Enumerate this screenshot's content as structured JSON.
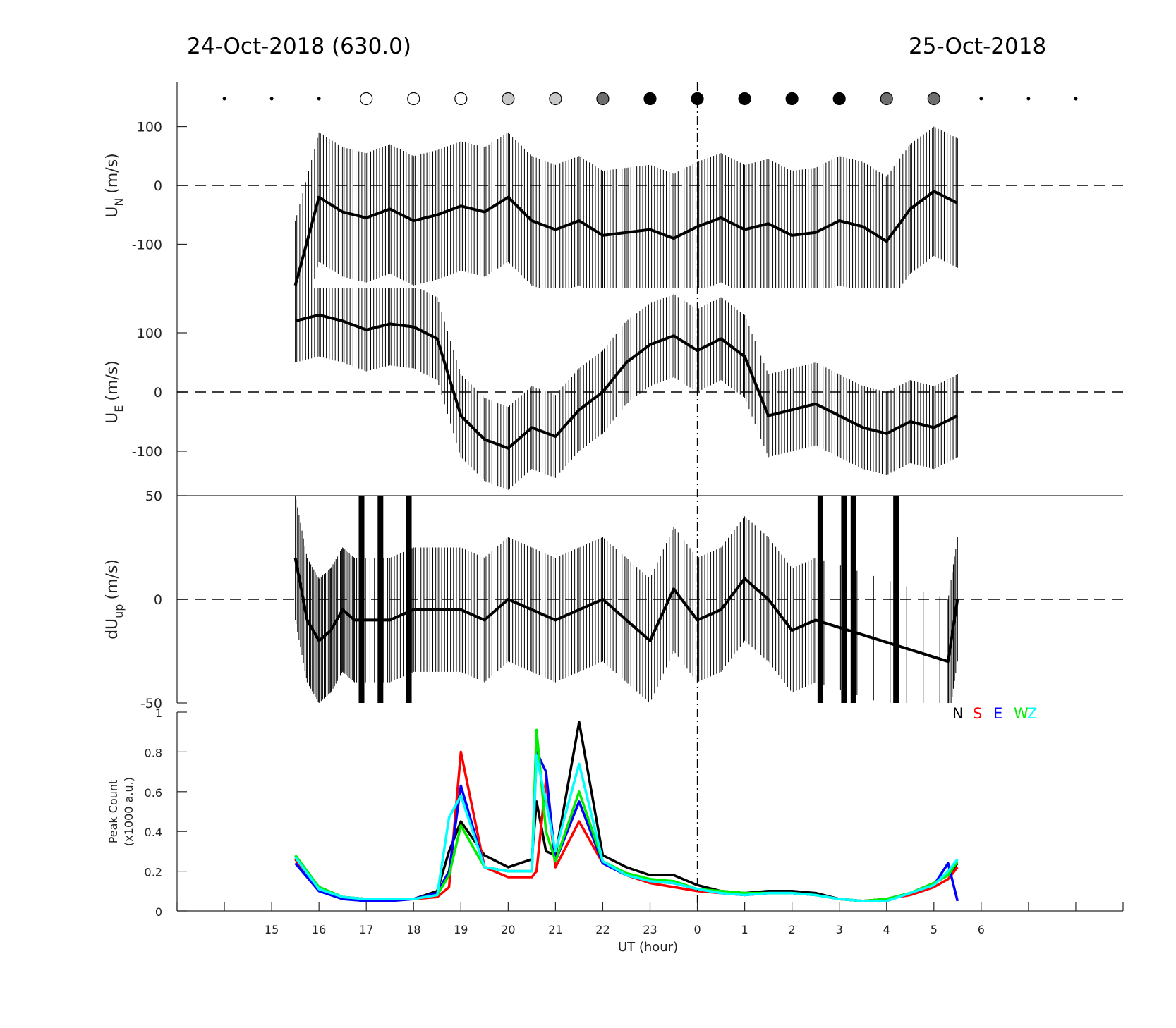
{
  "header": {
    "left_title": "24-Oct-2018 (630.0)",
    "right_title": "25-Oct-2018"
  },
  "moon_phase": {
    "hours": [
      -10,
      -9,
      -8,
      -7,
      -6,
      -5,
      -4,
      -3,
      -2,
      -1,
      0,
      1,
      2,
      3,
      4,
      5,
      6,
      7,
      8
    ],
    "shade": [
      "dot",
      "dot",
      "dot",
      "white",
      "white",
      "white",
      "lightgray",
      "lightgray",
      "darkgray",
      "black",
      "black",
      "black",
      "black",
      "black",
      "darkgray",
      "darkgray",
      "dot",
      "dot",
      "dot"
    ],
    "colors": {
      "white": "#ffffff",
      "lightgray": "#c8c8c8",
      "darkgray": "#6e6e6e",
      "black": "#000000"
    }
  },
  "chart_data": [
    {
      "type": "line",
      "id": "un",
      "ylabel_main": "U",
      "ylabel_sub": "N",
      "ylabel_unit": "(m/s)",
      "ylim": [
        -175,
        175
      ],
      "yticks": [
        -100,
        0,
        100
      ],
      "ytick_labels": [
        "-100",
        "0",
        "100"
      ],
      "zero_line": "dashed",
      "x": [
        -8.5,
        -8,
        -7.5,
        -7,
        -6.5,
        -6,
        -5.5,
        -5,
        -4.5,
        -4,
        -3.5,
        -3,
        -2.5,
        -2,
        -1.5,
        -1,
        -0.5,
        0,
        0.5,
        1,
        1.5,
        2,
        2.5,
        3,
        3.5,
        4,
        4.5,
        5,
        5.5
      ],
      "y": [
        -170,
        -20,
        -45,
        -55,
        -40,
        -60,
        -50,
        -35,
        -45,
        -20,
        -60,
        -75,
        -60,
        -85,
        -80,
        -75,
        -90,
        -70,
        -55,
        -75,
        -65,
        -85,
        -80,
        -60,
        -70,
        -95,
        -40,
        -10,
        -30
      ],
      "errorbar_half_width": 110
    },
    {
      "type": "line",
      "id": "ue",
      "ylabel_main": "U",
      "ylabel_sub": "E",
      "ylabel_unit": "(m/s)",
      "ylim": [
        -175,
        175
      ],
      "yticks": [
        -100,
        0,
        100
      ],
      "ytick_labels": [
        "-100",
        "0",
        "100"
      ],
      "zero_line": "dashed",
      "x": [
        -8.5,
        -8,
        -7.5,
        -7,
        -6.5,
        -6,
        -5.5,
        -5,
        -4.5,
        -4,
        -3.5,
        -3,
        -2.5,
        -2,
        -1.5,
        -1,
        -0.5,
        0,
        0.5,
        1,
        1.5,
        2,
        2.5,
        3,
        3.5,
        4,
        4.5,
        5,
        5.5
      ],
      "y": [
        120,
        130,
        120,
        105,
        115,
        110,
        90,
        -40,
        -80,
        -95,
        -60,
        -75,
        -30,
        0,
        50,
        80,
        95,
        70,
        90,
        60,
        -40,
        -30,
        -20,
        -40,
        -60,
        -70,
        -50,
        -60,
        -40
      ],
      "errorbar_half_width": 70
    },
    {
      "type": "line",
      "id": "dup",
      "ylabel_main": "dU",
      "ylabel_sub": "up",
      "ylabel_unit": "(m/s)",
      "ylim": [
        -50,
        50
      ],
      "yticks": [
        -50,
        0,
        50
      ],
      "ytick_labels": [
        "-50",
        "0",
        "50"
      ],
      "zero_line": "dashed",
      "x": [
        -8.5,
        -8.25,
        -8,
        -7.75,
        -7.5,
        -7.25,
        -6.5,
        -6,
        -5.5,
        -5,
        -4.5,
        -4,
        -3.5,
        -3,
        -2.5,
        -2,
        -1.5,
        -1,
        -0.5,
        0,
        0.5,
        1,
        1.5,
        2,
        2.5,
        5.3,
        5.5
      ],
      "y": [
        20,
        -10,
        -20,
        -15,
        -5,
        -10,
        -10,
        -5,
        -5,
        -5,
        -10,
        0,
        -5,
        -10,
        -5,
        0,
        -10,
        -20,
        5,
        -10,
        -5,
        10,
        0,
        -15,
        -10,
        -30,
        0
      ],
      "errorbar_half_width": 30,
      "saturated_bars_hours": [
        -7.1,
        -6.7,
        -6.1,
        2.6,
        3.1,
        3.3,
        4.2
      ]
    },
    {
      "type": "line",
      "id": "peak",
      "ylabel_line1": "Peak Count",
      "ylabel_line2": "(x1000 a.u.)",
      "ylim": [
        0,
        1
      ],
      "yticks": [
        0,
        0.2,
        0.4,
        0.6,
        0.8,
        1
      ],
      "ytick_labels": [
        "0",
        "0.2",
        "0.4",
        "0.6",
        "0.8",
        "1"
      ],
      "legend": [
        {
          "label": "N",
          "color": "#000000"
        },
        {
          "label": "S",
          "color": "#ff0000"
        },
        {
          "label": "E",
          "color": "#0000ff"
        },
        {
          "label": "W",
          "color": "#00ee00"
        },
        {
          "label": "Z",
          "color": "#00ffff"
        }
      ],
      "x": [
        -8.5,
        -8,
        -7.5,
        -7,
        -6.5,
        -6,
        -5.5,
        -5.25,
        -5,
        -4.5,
        -4,
        -3.5,
        -3.4,
        -3.2,
        -3,
        -2.5,
        -2,
        -1.5,
        -1,
        -0.5,
        0,
        0.5,
        1,
        1.5,
        2,
        2.5,
        3,
        3.5,
        4,
        4.5,
        5,
        5.3,
        5.5
      ],
      "series": [
        {
          "name": "N",
          "color": "#000000",
          "y": [
            0.26,
            0.12,
            0.07,
            0.06,
            0.06,
            0.06,
            0.1,
            0.3,
            0.45,
            0.28,
            0.22,
            0.26,
            0.55,
            0.3,
            0.28,
            0.95,
            0.28,
            0.22,
            0.18,
            0.18,
            0.13,
            0.1,
            0.09,
            0.1,
            0.1,
            0.09,
            0.06,
            0.05,
            0.06,
            0.09,
            0.14,
            0.18,
            0.24
          ]
        },
        {
          "name": "S",
          "color": "#ff0000",
          "y": [
            0.26,
            0.11,
            0.07,
            0.06,
            0.06,
            0.06,
            0.07,
            0.12,
            0.8,
            0.22,
            0.17,
            0.17,
            0.2,
            0.66,
            0.22,
            0.45,
            0.24,
            0.18,
            0.14,
            0.12,
            0.1,
            0.09,
            0.08,
            0.09,
            0.09,
            0.08,
            0.06,
            0.05,
            0.06,
            0.08,
            0.12,
            0.16,
            0.22
          ]
        },
        {
          "name": "E",
          "color": "#0000ff",
          "y": [
            0.24,
            0.1,
            0.06,
            0.05,
            0.05,
            0.06,
            0.09,
            0.2,
            0.63,
            0.22,
            0.2,
            0.2,
            0.8,
            0.7,
            0.25,
            0.55,
            0.24,
            0.18,
            0.15,
            0.14,
            0.11,
            0.09,
            0.08,
            0.09,
            0.09,
            0.08,
            0.06,
            0.05,
            0.05,
            0.09,
            0.13,
            0.24,
            0.05
          ]
        },
        {
          "name": "W",
          "color": "#00ee00",
          "y": [
            0.28,
            0.12,
            0.07,
            0.06,
            0.06,
            0.06,
            0.08,
            0.18,
            0.43,
            0.22,
            0.2,
            0.2,
            0.91,
            0.4,
            0.25,
            0.6,
            0.25,
            0.19,
            0.16,
            0.15,
            0.11,
            0.1,
            0.09,
            0.09,
            0.09,
            0.08,
            0.06,
            0.05,
            0.06,
            0.09,
            0.14,
            0.18,
            0.25
          ]
        },
        {
          "name": "Z",
          "color": "#00ffff",
          "y": [
            0.27,
            0.11,
            0.07,
            0.06,
            0.06,
            0.06,
            0.08,
            0.47,
            0.58,
            0.22,
            0.2,
            0.2,
            0.78,
            0.55,
            0.3,
            0.74,
            0.25,
            0.18,
            0.15,
            0.14,
            0.11,
            0.09,
            0.08,
            0.09,
            0.09,
            0.08,
            0.06,
            0.05,
            0.05,
            0.09,
            0.13,
            0.2,
            0.26
          ]
        }
      ]
    }
  ],
  "x_axis": {
    "label": "UT (hour)",
    "tick_hours": [
      -9,
      -8,
      -7,
      -6,
      -5,
      -4,
      -3,
      -2,
      -1,
      0,
      1,
      2,
      3,
      4,
      5,
      6
    ],
    "tick_labels": [
      "15",
      "16",
      "17",
      "18",
      "19",
      "20",
      "21",
      "22",
      "23",
      "0",
      "1",
      "2",
      "3",
      "4",
      "5",
      "6"
    ],
    "xlim": [
      -11,
      9
    ],
    "midnight_hour": 0
  }
}
